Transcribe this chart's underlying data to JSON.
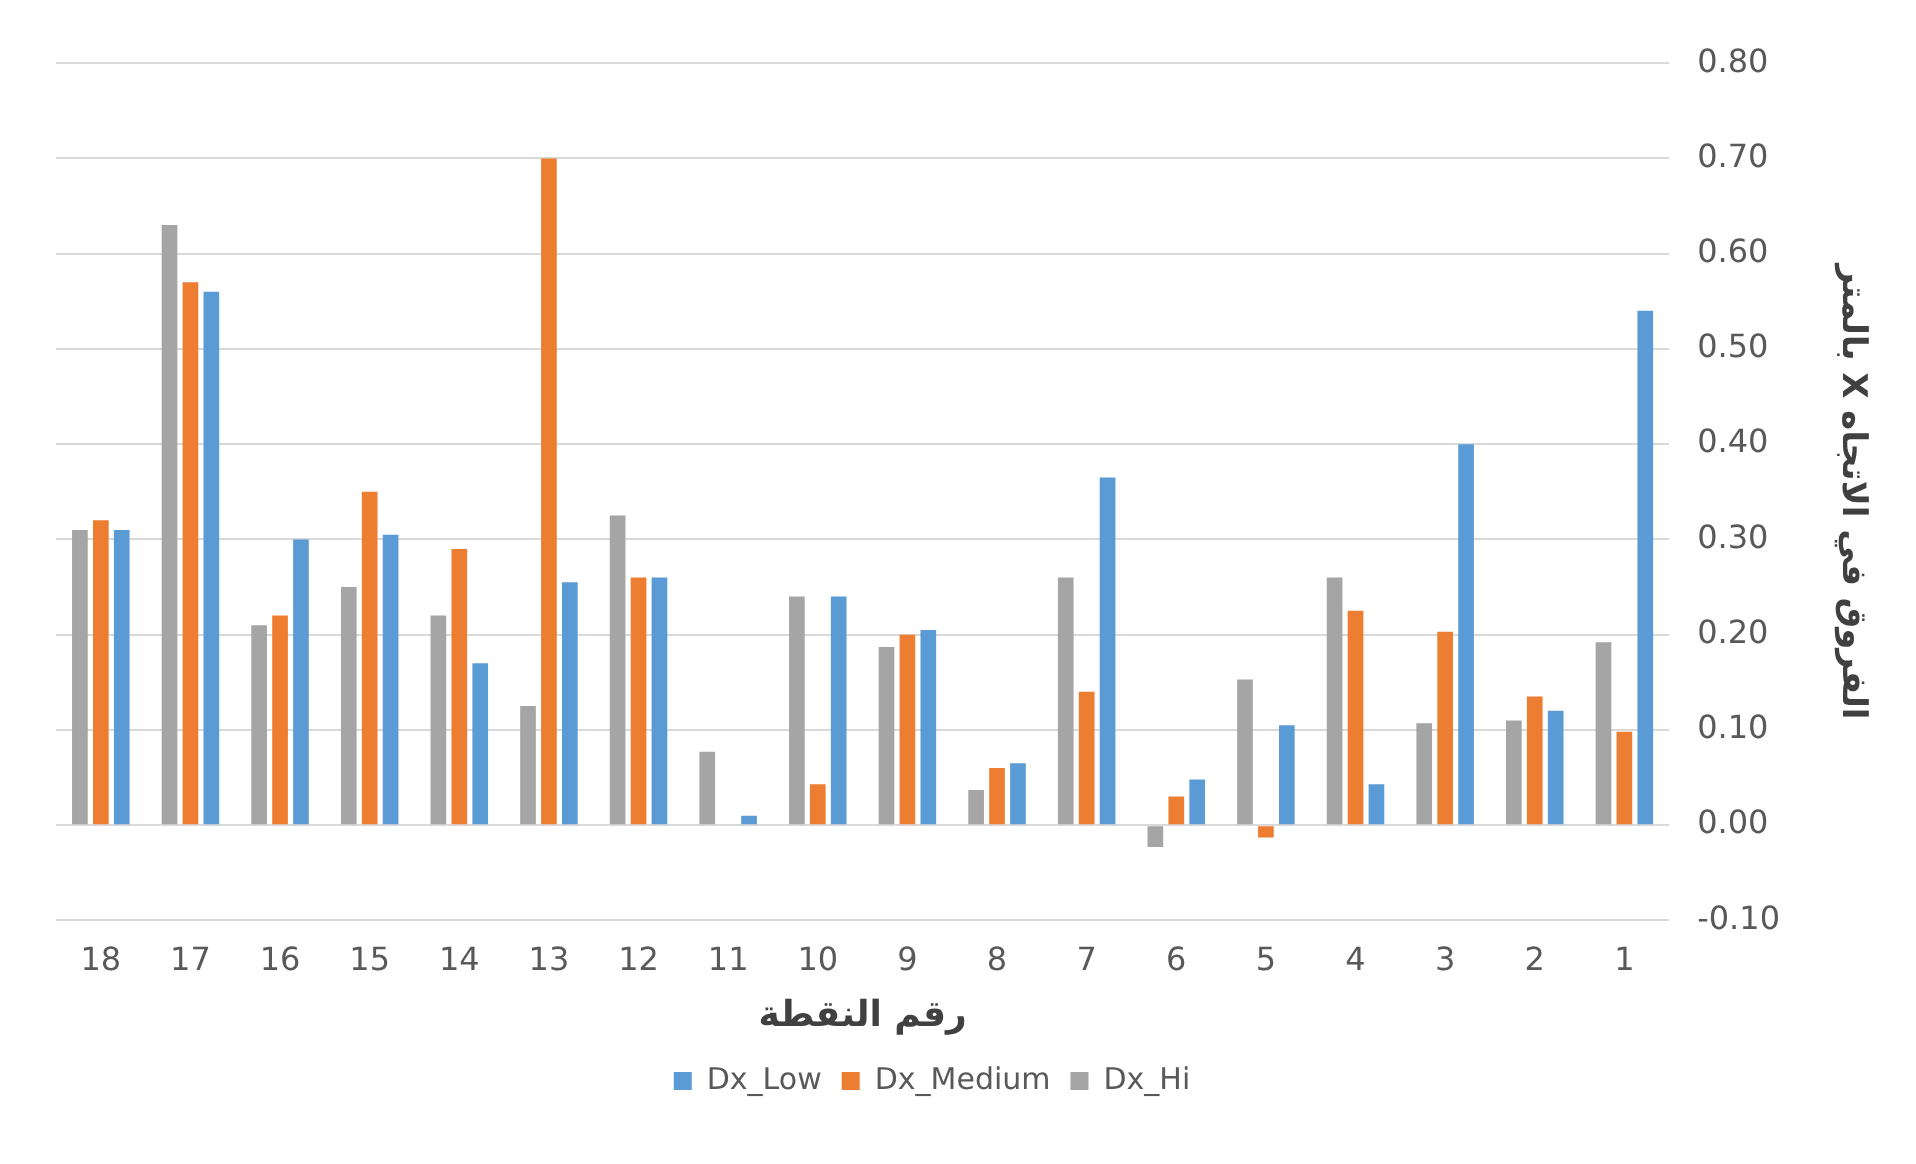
{
  "chart_data": {
    "type": "bar",
    "xlabel": "رقم النقطة",
    "ylabel": "الفروق في الاتجاه X بالمتر",
    "categories": [
      "18",
      "17",
      "16",
      "15",
      "14",
      "13",
      "12",
      "11",
      "10",
      "9",
      "8",
      "7",
      "6",
      "5",
      "4",
      "3",
      "2",
      "1"
    ],
    "series": [
      {
        "name": "Dx_Low",
        "color": "#5b9bd5",
        "values": [
          0.31,
          0.56,
          0.3,
          0.305,
          0.17,
          0.255,
          0.26,
          0.01,
          0.24,
          0.205,
          0.065,
          0.365,
          0.048,
          0.105,
          0.043,
          0.4,
          0.12,
          0.54
        ]
      },
      {
        "name": "Dx_Medium",
        "color": "#ed7d31",
        "values": [
          0.32,
          0.57,
          0.22,
          0.35,
          0.29,
          0.7,
          0.26,
          0,
          0.043,
          0.2,
          0.06,
          0.14,
          0.03,
          -0.013,
          0.225,
          0.203,
          0.135,
          0.098
        ]
      },
      {
        "name": "Dx_Hi",
        "color": "#a5a5a5",
        "values": [
          0.31,
          0.63,
          0.21,
          0.25,
          0.22,
          0.125,
          0.325,
          0.077,
          0.24,
          0.187,
          0.037,
          0.26,
          -0.023,
          0.153,
          0.26,
          0.107,
          0.11,
          0.192
        ]
      }
    ],
    "ylim": [
      -0.1,
      0.8
    ],
    "yticks": [
      {
        "value": -0.1,
        "label": "-0.10"
      },
      {
        "value": 0,
        "label": "0.00"
      },
      {
        "value": 0.1,
        "label": "0.10"
      },
      {
        "value": 0.2,
        "label": "0.20"
      },
      {
        "value": 0.3,
        "label": "0.30"
      },
      {
        "value": 0.4,
        "label": "0.40"
      },
      {
        "value": 0.5,
        "label": "0.50"
      },
      {
        "value": 0.6,
        "label": "0.60"
      },
      {
        "value": 0.7,
        "label": "0.70"
      },
      {
        "value": 0.8,
        "label": "0.80"
      }
    ],
    "grid": "y",
    "legend": "bottom"
  }
}
